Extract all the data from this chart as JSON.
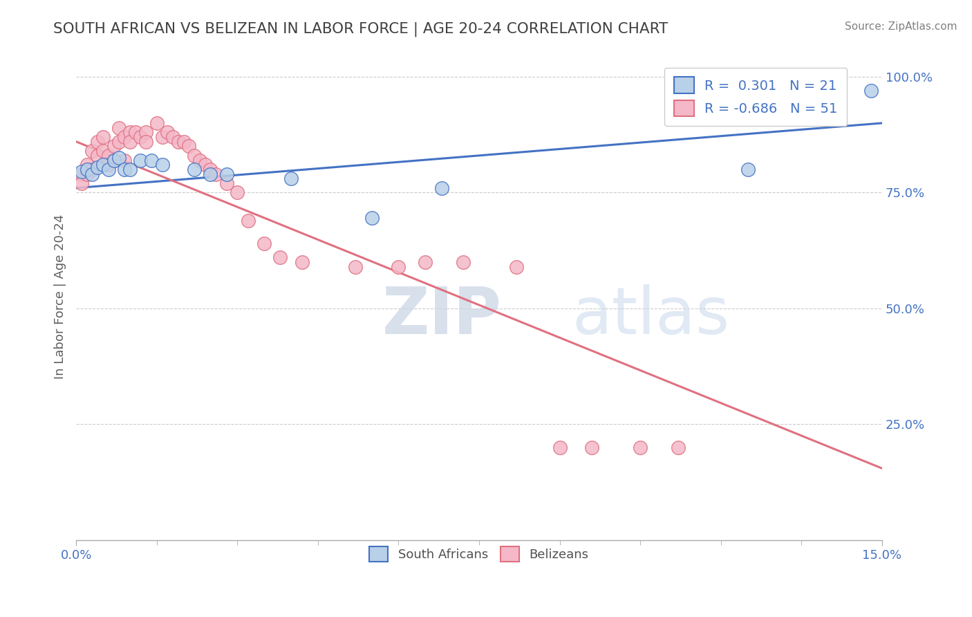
{
  "title": "SOUTH AFRICAN VS BELIZEAN IN LABOR FORCE | AGE 20-24 CORRELATION CHART",
  "source": "Source: ZipAtlas.com",
  "ylabel": "In Labor Force | Age 20-24",
  "xlim": [
    0.0,
    0.15
  ],
  "ylim": [
    0.0,
    1.05
  ],
  "legend_entry1": "R =  0.301   N = 21",
  "legend_entry2": "R = -0.686   N = 51",
  "blue_scatter_x": [
    0.001,
    0.002,
    0.003,
    0.004,
    0.005,
    0.006,
    0.007,
    0.008,
    0.009,
    0.01,
    0.012,
    0.014,
    0.016,
    0.022,
    0.025,
    0.028,
    0.04,
    0.055,
    0.068,
    0.125,
    0.148
  ],
  "blue_scatter_y": [
    0.795,
    0.8,
    0.79,
    0.805,
    0.81,
    0.8,
    0.82,
    0.825,
    0.8,
    0.8,
    0.82,
    0.82,
    0.81,
    0.8,
    0.79,
    0.79,
    0.78,
    0.695,
    0.76,
    0.8,
    0.97
  ],
  "pink_scatter_x": [
    0.001,
    0.001,
    0.002,
    0.002,
    0.003,
    0.003,
    0.004,
    0.004,
    0.005,
    0.005,
    0.006,
    0.006,
    0.007,
    0.007,
    0.008,
    0.008,
    0.009,
    0.009,
    0.01,
    0.01,
    0.011,
    0.012,
    0.013,
    0.013,
    0.015,
    0.016,
    0.017,
    0.018,
    0.019,
    0.02,
    0.021,
    0.022,
    0.023,
    0.024,
    0.025,
    0.026,
    0.028,
    0.03,
    0.032,
    0.035,
    0.038,
    0.042,
    0.052,
    0.06,
    0.065,
    0.072,
    0.082,
    0.09,
    0.096,
    0.105,
    0.112
  ],
  "pink_scatter_y": [
    0.79,
    0.77,
    0.81,
    0.79,
    0.84,
    0.8,
    0.86,
    0.83,
    0.87,
    0.84,
    0.83,
    0.81,
    0.85,
    0.82,
    0.89,
    0.86,
    0.87,
    0.82,
    0.88,
    0.86,
    0.88,
    0.87,
    0.88,
    0.86,
    0.9,
    0.87,
    0.88,
    0.87,
    0.86,
    0.86,
    0.85,
    0.83,
    0.82,
    0.81,
    0.8,
    0.79,
    0.77,
    0.75,
    0.69,
    0.64,
    0.61,
    0.6,
    0.59,
    0.59,
    0.6,
    0.6,
    0.59,
    0.2,
    0.2,
    0.2,
    0.2
  ],
  "blue_line_x0": 0.0,
  "blue_line_y0": 0.76,
  "blue_line_x1": 0.15,
  "blue_line_y1": 0.9,
  "pink_line_x0": 0.0,
  "pink_line_y0": 0.86,
  "pink_line_x1": 0.15,
  "pink_line_y1": 0.155,
  "blue_color": "#b8d0e8",
  "blue_line_color": "#4472c4",
  "pink_color": "#f4b8c8",
  "pink_line_color": "#e07080",
  "watermark_zip": "ZIP",
  "watermark_atlas": "atlas",
  "title_color": "#404040",
  "axis_color": "#4472c4",
  "background_color": "#ffffff"
}
